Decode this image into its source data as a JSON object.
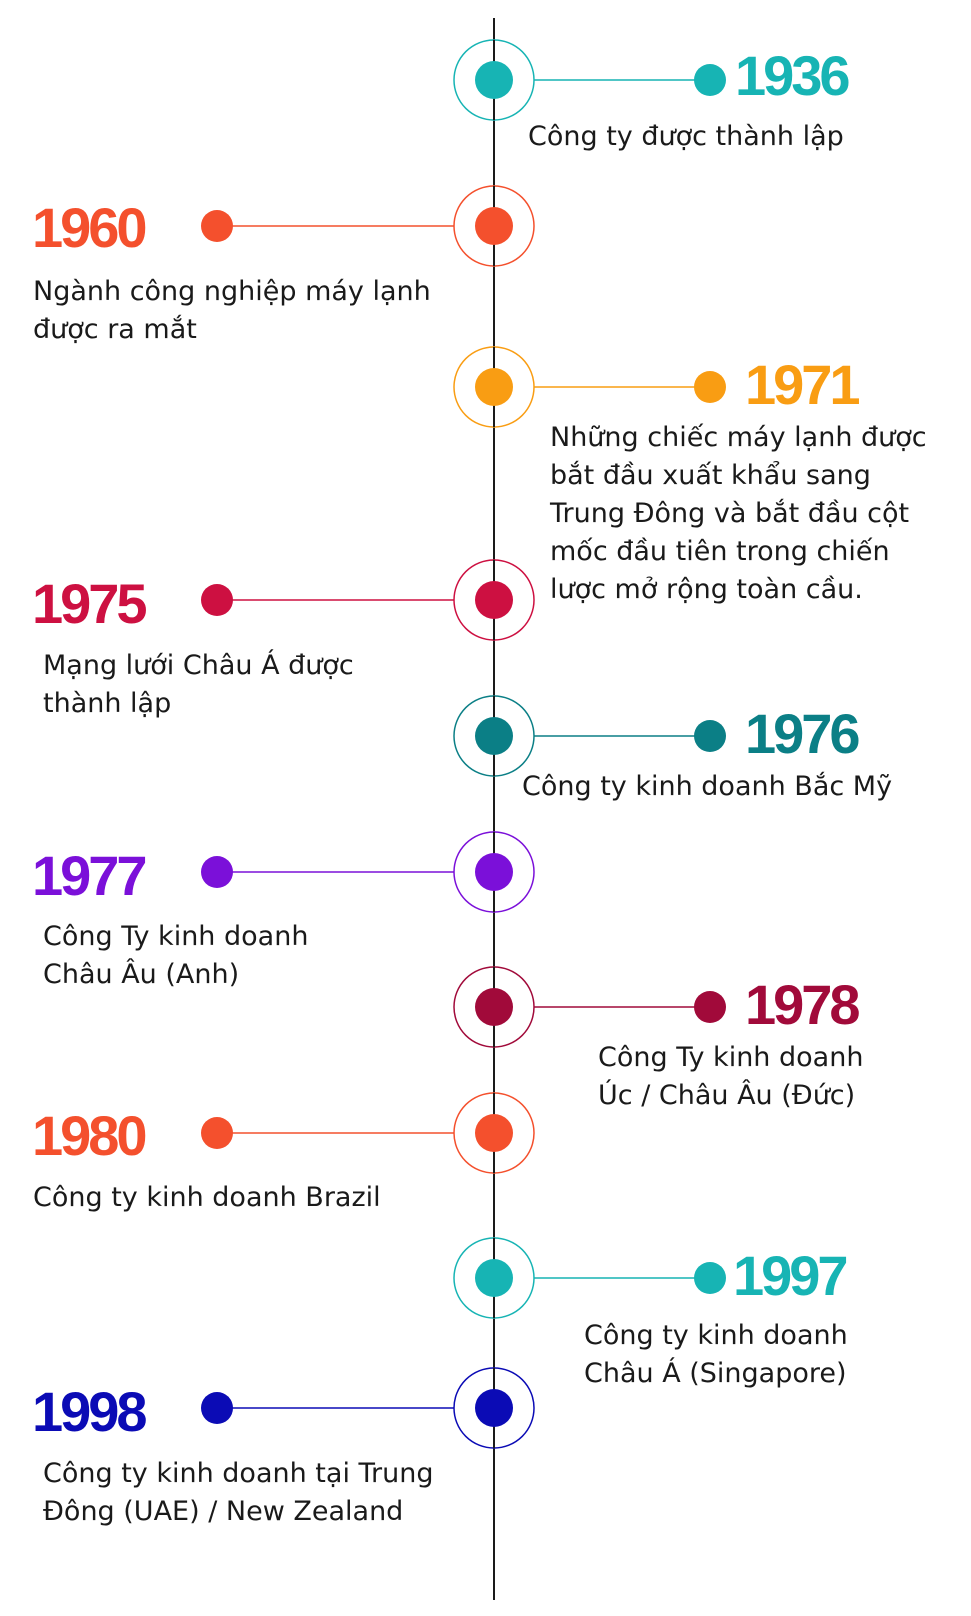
{
  "colors": {
    "axis": "#1a1a1a",
    "teal": "#17b4b4",
    "orange_red": "#f4502d",
    "orange": "#f99d13",
    "crimson": "#cd1041",
    "dark_teal": "#0b7f86",
    "purple": "#7b10d9",
    "maroon": "#a10a3a",
    "navy": "#0b0bb5"
  },
  "events": [
    {
      "year": "1936",
      "side": "right",
      "color": "#17b4b4",
      "text": "Công ty được thành lập"
    },
    {
      "year": "1960",
      "side": "left",
      "color": "#f4502d",
      "text": "Ngành công nghiệp máy lạnh được ra mắt"
    },
    {
      "year": "1971",
      "side": "right",
      "color": "#f99d13",
      "text": "Những chiếc máy lạnh được bắt đầu xuất khẩu sang Trung Đông và bắt đầu cột mốc đầu tiên trong chiến lược mở rộng toàn cầu."
    },
    {
      "year": "1975",
      "side": "left",
      "color": "#cd1041",
      "text": "Mạng lưới Châu Á được thành lập"
    },
    {
      "year": "1976",
      "side": "right",
      "color": "#0b7f86",
      "text": "Công ty kinh doanh Bắc Mỹ"
    },
    {
      "year": "1977",
      "side": "left",
      "color": "#7b10d9",
      "text": "Công Ty kinh doanh Châu Âu (Anh)"
    },
    {
      "year": "1978",
      "side": "right",
      "color": "#a10a3a",
      "text": "Công Ty kinh doanh Úc / Châu Âu (Đức)"
    },
    {
      "year": "1980",
      "side": "left",
      "color": "#f4502d",
      "text": "Công ty kinh doanh Brazil"
    },
    {
      "year": "1997",
      "side": "right",
      "color": "#17b4b4",
      "text": "Công ty kinh doanh Châu Á (Singapore)"
    },
    {
      "year": "1998",
      "side": "left",
      "color": "#0b0bb5",
      "text": "Công ty kinh doanh tại Trung Đông (UAE) / New Zealand"
    }
  ]
}
